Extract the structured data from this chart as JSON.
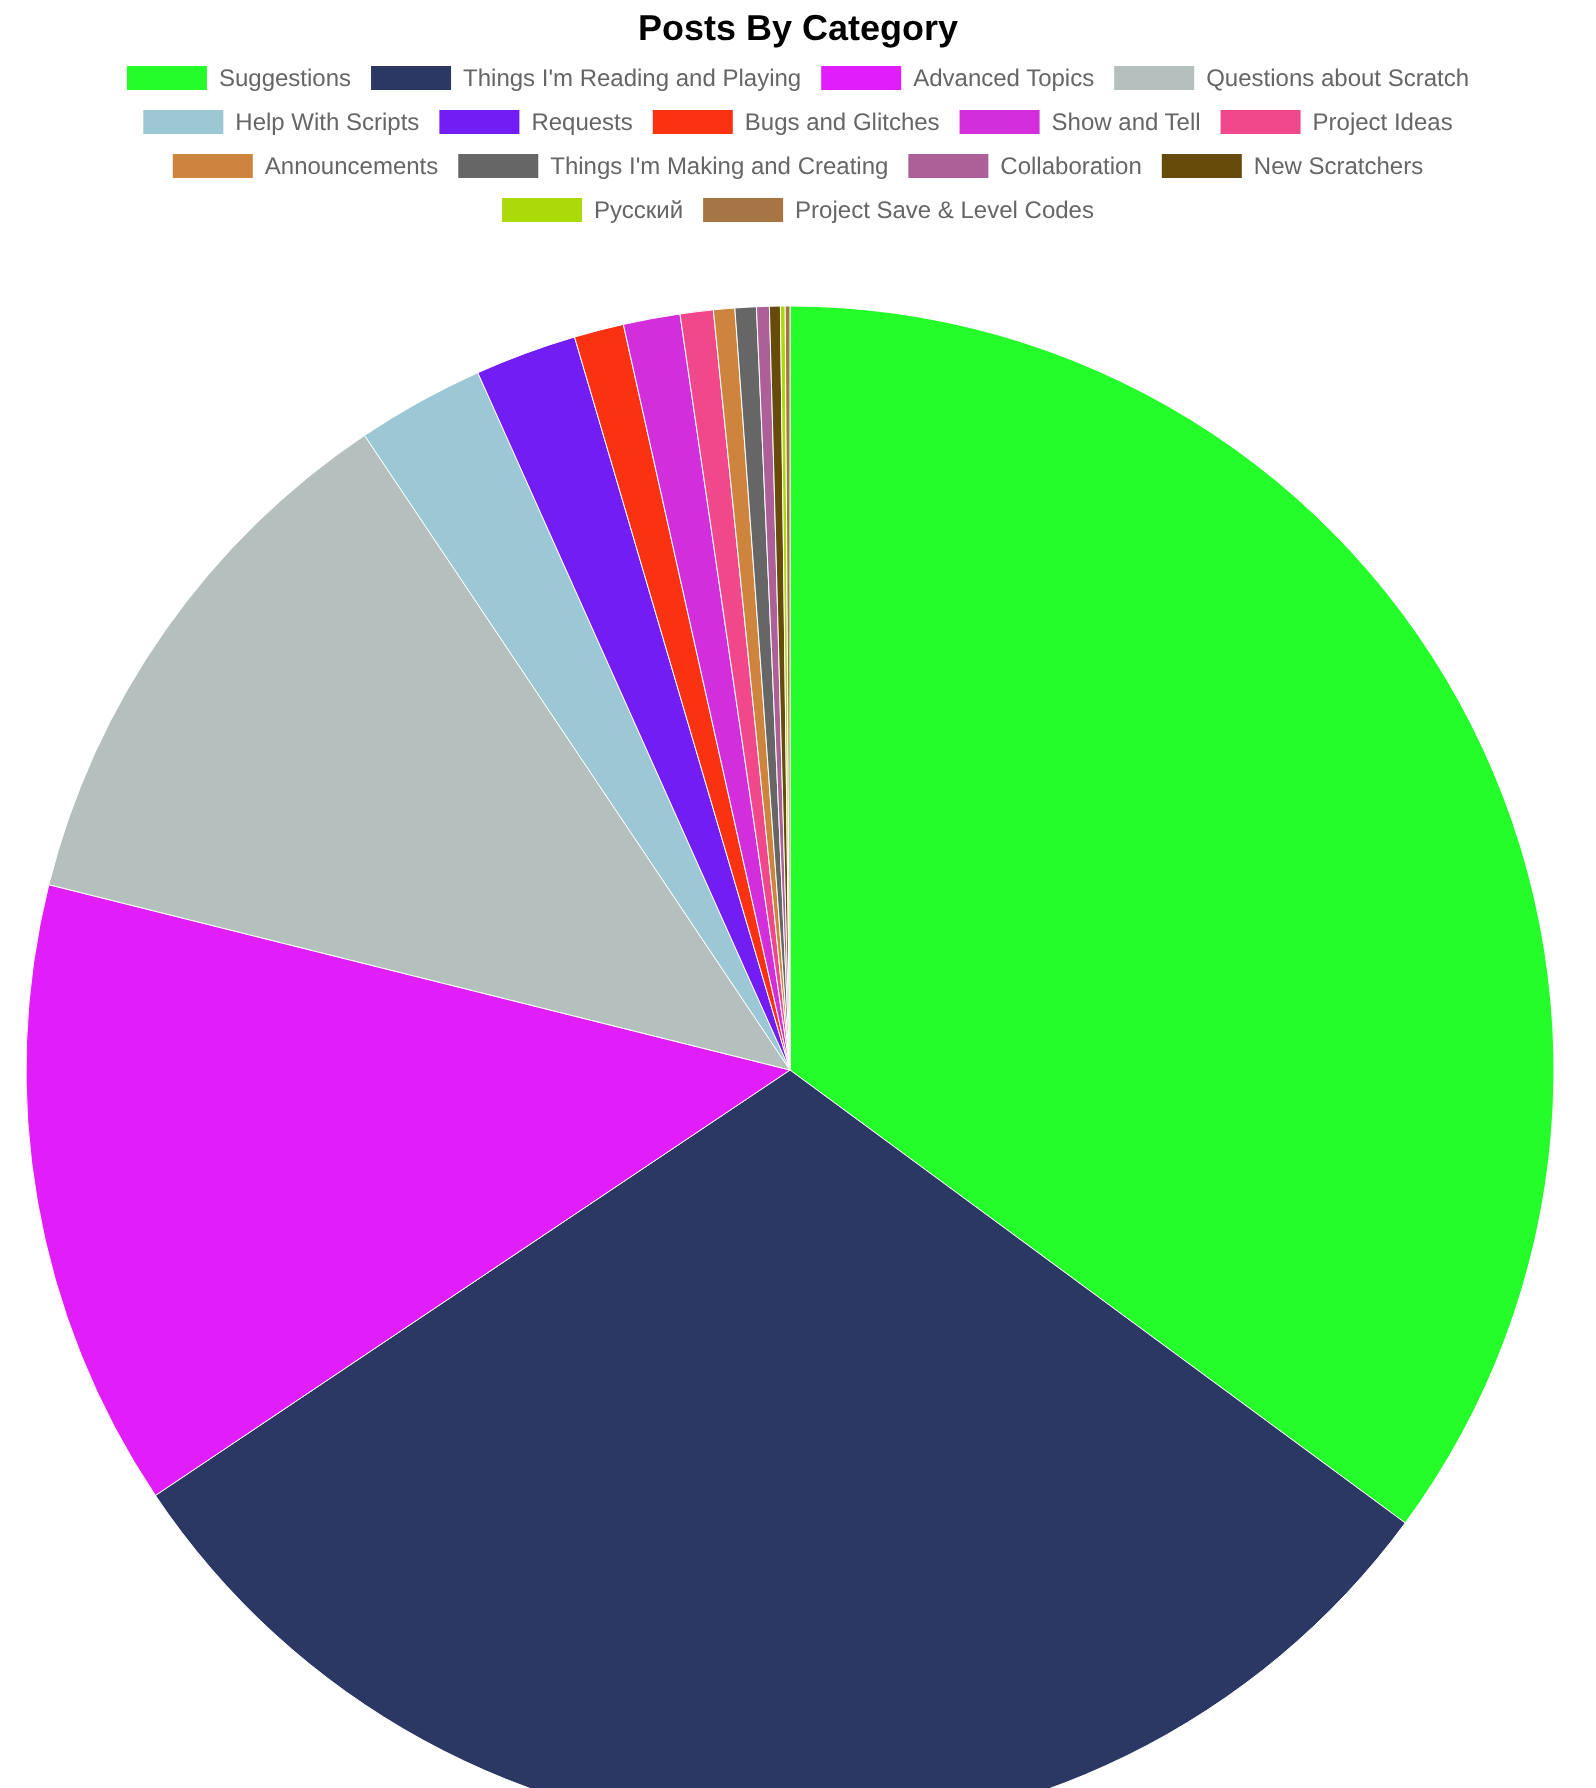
{
  "chart_data": {
    "type": "pie",
    "title": "Posts By Category",
    "categories": [
      "Suggestions",
      "Things I'm Reading and Playing",
      "Advanced Topics",
      "Questions about Scratch",
      "Help With Scripts",
      "Requests",
      "Bugs and Glitches",
      "Show and Tell",
      "Project Ideas",
      "Announcements",
      "Things I'm Making and Creating",
      "Collaboration",
      "New Scratchers",
      "Русский",
      "Project Save & Level Codes"
    ],
    "values": [
      35.1,
      30.5,
      13.3,
      11.7,
      2.7,
      2.15,
      1.05,
      1.2,
      0.7,
      0.45,
      0.45,
      0.27,
      0.23,
      0.1,
      0.1
    ],
    "colors": [
      "#25fd2a",
      "#2b3864",
      "#e11ef9",
      "#b5bfbe",
      "#9cc7d5",
      "#721df4",
      "#fb3211",
      "#d22edc",
      "#f0488a",
      "#cd843c",
      "#666666",
      "#ad5f97",
      "#664b0a",
      "#acd90a",
      "#a67543"
    ],
    "legend": "top"
  }
}
